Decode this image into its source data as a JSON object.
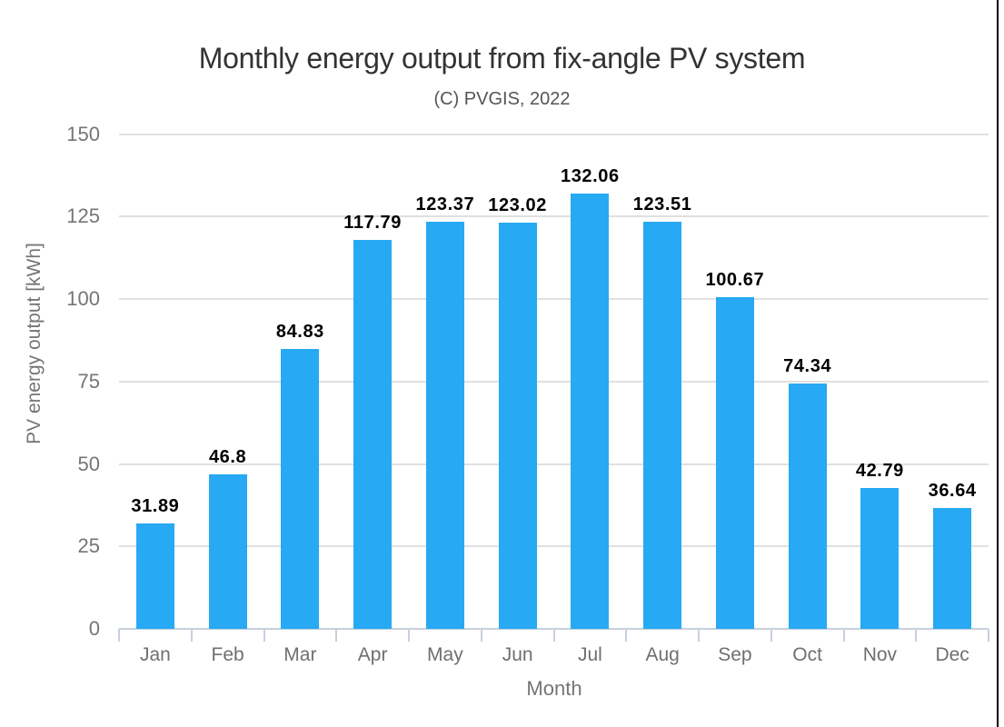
{
  "chart_data": {
    "type": "bar",
    "title": "Monthly energy output from fix-angle PV system",
    "subtitle": "(C) PVGIS, 2022",
    "xlabel": "Month",
    "ylabel": "PV energy output [kWh]",
    "categories": [
      "Jan",
      "Feb",
      "Mar",
      "Apr",
      "May",
      "Jun",
      "Jul",
      "Aug",
      "Sep",
      "Oct",
      "Nov",
      "Dec"
    ],
    "values": [
      31.89,
      46.8,
      84.83,
      117.79,
      123.37,
      123.02,
      132.06,
      123.51,
      100.67,
      74.34,
      42.79,
      36.64
    ],
    "value_labels": [
      "31.89",
      "46.8",
      "84.83",
      "117.79",
      "123.37",
      "123.02",
      "132.06",
      "123.51",
      "100.67",
      "74.34",
      "42.79",
      "36.64"
    ],
    "y_ticks": [
      0,
      25,
      50,
      75,
      100,
      125,
      150
    ],
    "ylim": [
      0,
      150
    ],
    "grid": true,
    "legend": "none",
    "bar_color": "#27a9f4"
  },
  "colors": {
    "bar_color": "#27a9f4",
    "grid_color": "#e0e0e0",
    "axis_line_color": "#c7d0dc",
    "title_color": "#333333",
    "subtitle_color": "#555555",
    "tick_label_color": "#757575",
    "value_label_color": "#000000",
    "edge_line_color": "#000000"
  }
}
